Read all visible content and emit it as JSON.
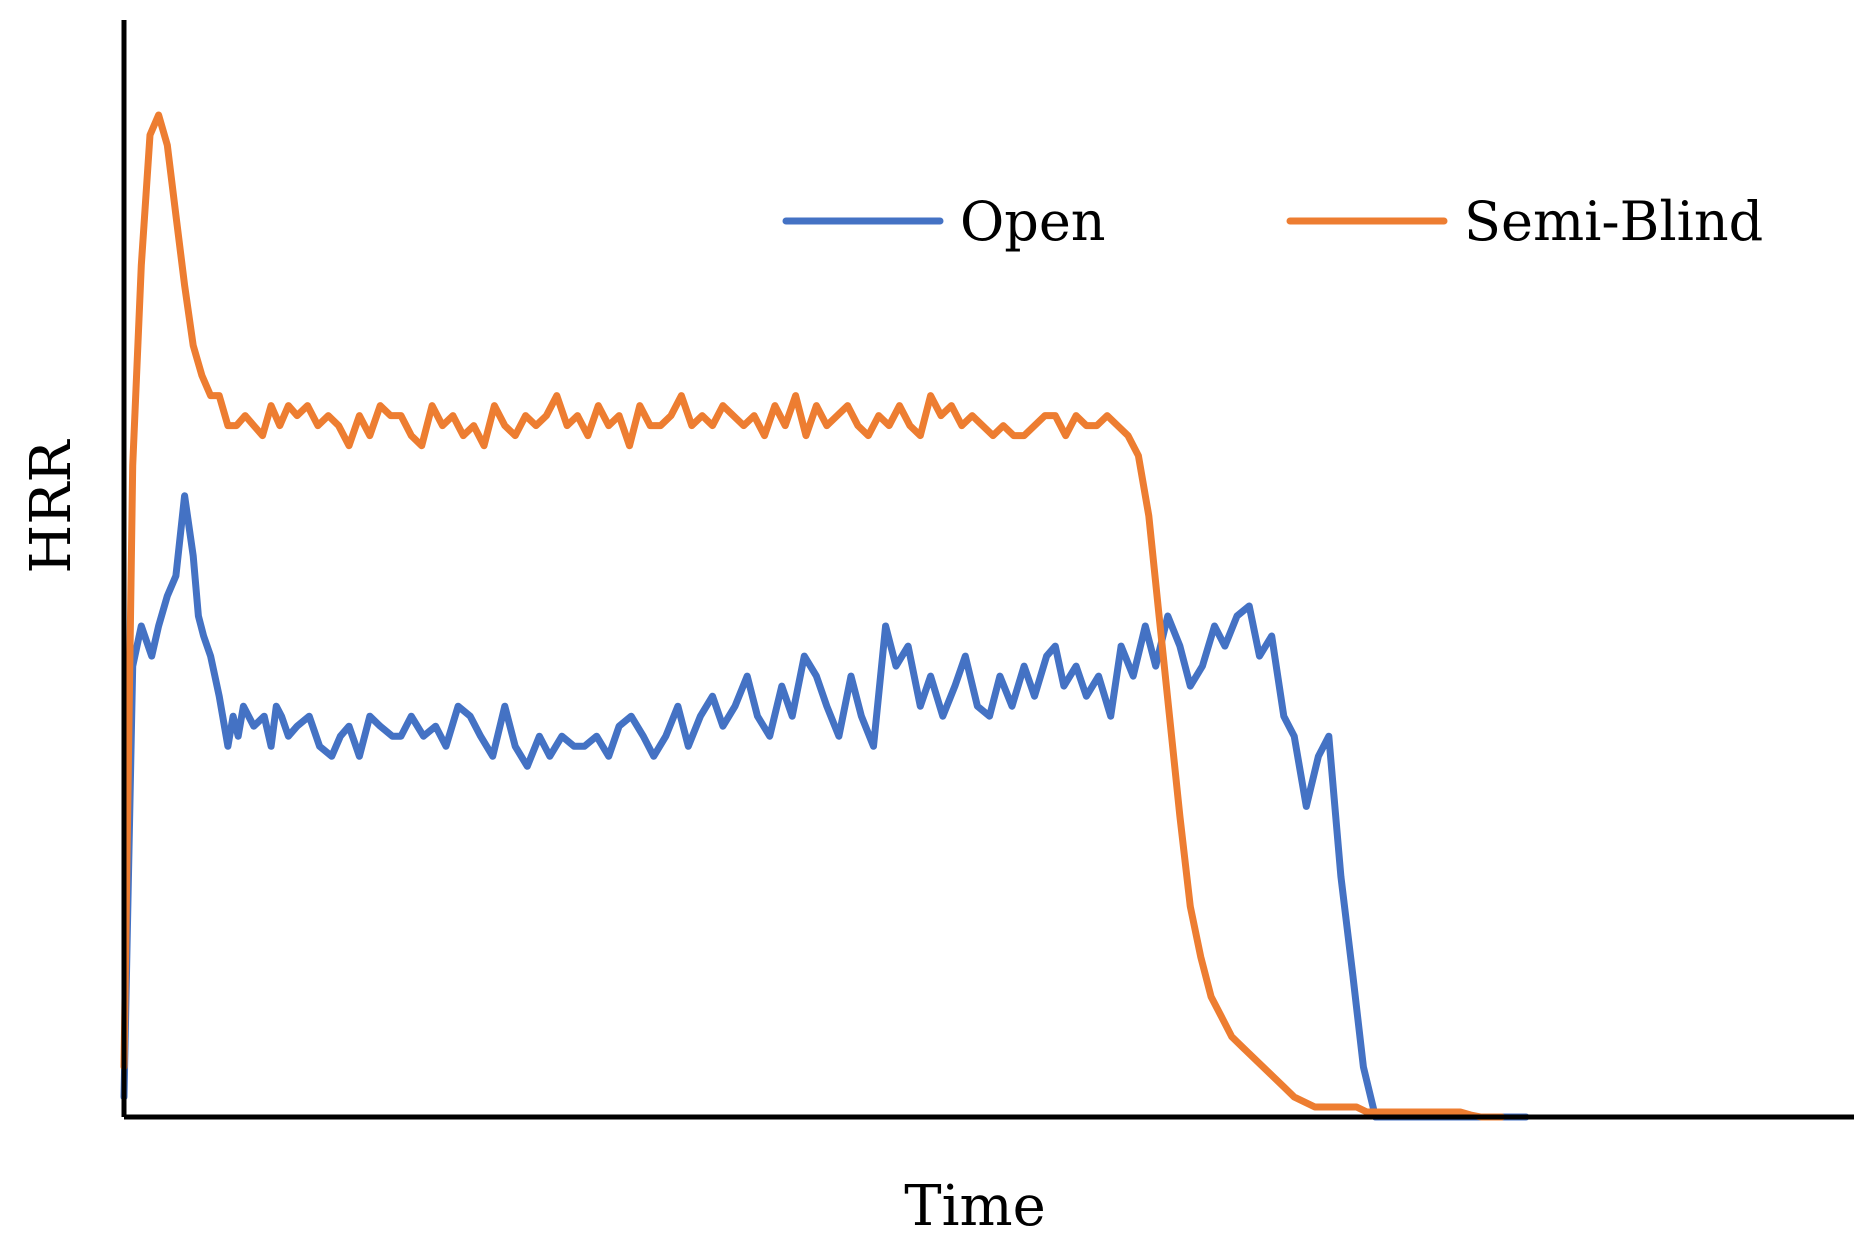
{
  "chart_data": {
    "type": "line",
    "title": "",
    "xlabel": "Time",
    "ylabel": "HRR",
    "xlim": [
      0,
      100
    ],
    "ylim": [
      0,
      100
    ],
    "x_ticks_shown": false,
    "y_ticks_shown": false,
    "grid": false,
    "legend": {
      "placement": "top-right",
      "orientation": "horizontal"
    },
    "series": [
      {
        "name": "Open",
        "color": "#4472C4",
        "x": [
          0.0,
          0.5,
          1.0,
          1.6,
          2.0,
          2.5,
          3.0,
          3.5,
          4.0,
          4.3,
          4.6,
          5.0,
          5.5,
          6.0,
          6.3,
          6.6,
          6.9,
          7.5,
          8.1,
          8.5,
          8.8,
          9.1,
          9.5,
          10.0,
          10.7,
          11.3,
          12.0,
          12.5,
          13.0,
          13.6,
          14.2,
          14.8,
          15.5,
          16.0,
          16.6,
          17.3,
          18.0,
          18.6,
          19.3,
          20.0,
          20.6,
          21.3,
          22.0,
          22.6,
          23.3,
          24.0,
          24.6,
          25.3,
          26.0,
          26.6,
          27.3,
          28.0,
          28.6,
          29.3,
          30.0,
          30.6,
          31.3,
          32.0,
          32.6,
          33.3,
          34.0,
          34.6,
          35.3,
          36.0,
          36.6,
          37.3,
          38.0,
          38.6,
          39.3,
          40.0,
          40.6,
          41.3,
          42.0,
          42.6,
          43.3,
          44.0,
          44.6,
          45.3,
          46.0,
          46.6,
          47.3,
          48.0,
          48.6,
          49.3,
          50.0,
          50.6,
          51.3,
          52.0,
          52.6,
          53.3,
          53.8,
          54.3,
          55.0,
          55.6,
          56.3,
          57.0,
          57.6,
          58.3,
          59.0,
          59.6,
          60.3,
          61.0,
          61.6,
          62.3,
          63.0,
          63.6,
          64.3,
          65.0,
          65.6,
          66.3,
          67.0,
          67.6,
          68.3,
          69.0,
          69.6,
          70.3,
          71.0,
          71.6,
          72.3,
          72.8,
          73.3,
          73.8,
          74.3,
          74.8,
          75.3,
          75.8,
          76.6,
          77.2,
          78.0,
          78.6,
          79.3,
          80.0,
          81.0
        ],
        "values": [
          2,
          45,
          49,
          46,
          49,
          52,
          54,
          62,
          56,
          50,
          48,
          46,
          42,
          37,
          40,
          38,
          41,
          39,
          40,
          37,
          41,
          40,
          38,
          39,
          40,
          37,
          36,
          38,
          39,
          36,
          40,
          39,
          38,
          38,
          40,
          38,
          39,
          37,
          41,
          40,
          38,
          36,
          41,
          37,
          35,
          38,
          36,
          38,
          37,
          37,
          38,
          36,
          39,
          40,
          38,
          36,
          38,
          41,
          37,
          40,
          42,
          39,
          41,
          44,
          40,
          38,
          43,
          40,
          46,
          44,
          41,
          38,
          44,
          40,
          37,
          49,
          45,
          47,
          41,
          44,
          40,
          43,
          46,
          41,
          40,
          44,
          41,
          45,
          42,
          46,
          47,
          43,
          45,
          42,
          44,
          40,
          47,
          44,
          49,
          45,
          50,
          47,
          43,
          45,
          49,
          47,
          50,
          51,
          46,
          48,
          40,
          38,
          31,
          36,
          38,
          24,
          14,
          5,
          0,
          0,
          0,
          0,
          0,
          0,
          0,
          0,
          0,
          0,
          0,
          0,
          0,
          0,
          0
        ]
      },
      {
        "name": "Semi-Blind",
        "color": "#ED7D31",
        "x": [
          0.0,
          0.5,
          1.0,
          1.5,
          2.0,
          2.5,
          3.0,
          3.5,
          4.0,
          4.5,
          5.0,
          5.5,
          6.0,
          6.5,
          7.0,
          7.5,
          8.0,
          8.5,
          9.0,
          9.5,
          10.0,
          10.6,
          11.2,
          11.8,
          12.4,
          13.0,
          13.6,
          14.2,
          14.8,
          15.4,
          16.0,
          16.6,
          17.2,
          17.8,
          18.4,
          19.0,
          19.6,
          20.2,
          20.8,
          21.4,
          22.0,
          22.6,
          23.2,
          23.8,
          24.4,
          25.0,
          25.6,
          26.2,
          26.8,
          27.4,
          28.0,
          28.6,
          29.2,
          29.8,
          30.4,
          31.0,
          31.6,
          32.2,
          32.8,
          33.4,
          34.0,
          34.6,
          35.2,
          35.8,
          36.4,
          37.0,
          37.6,
          38.2,
          38.8,
          39.4,
          40.0,
          40.6,
          41.2,
          41.8,
          42.4,
          43.0,
          43.6,
          44.2,
          44.8,
          45.4,
          46.0,
          46.6,
          47.2,
          47.8,
          48.4,
          49.0,
          49.6,
          50.2,
          50.8,
          51.4,
          52.0,
          52.6,
          53.2,
          53.8,
          54.4,
          55.0,
          55.6,
          56.2,
          56.8,
          57.4,
          58.0,
          58.6,
          59.2,
          59.8,
          60.4,
          61.0,
          61.6,
          62.2,
          62.8,
          63.4,
          64.0,
          64.6,
          65.2,
          65.8,
          66.4,
          67.0,
          67.6,
          68.2,
          68.8,
          69.4,
          70.0,
          70.6,
          71.2,
          71.8,
          72.4,
          73.0,
          73.6,
          74.2,
          74.8,
          75.4,
          76.0,
          76.6,
          77.2,
          77.8,
          78.4,
          79.0,
          79.6
        ],
        "values": [
          5,
          65,
          85,
          98,
          100,
          97,
          90,
          83,
          77,
          74,
          72,
          72,
          69,
          69,
          70,
          69,
          68,
          71,
          69,
          71,
          70,
          71,
          69,
          70,
          69,
          67,
          70,
          68,
          71,
          70,
          70,
          68,
          67,
          71,
          69,
          70,
          68,
          69,
          67,
          71,
          69,
          68,
          70,
          69,
          70,
          72,
          69,
          70,
          68,
          71,
          69,
          70,
          67,
          71,
          69,
          69,
          70,
          72,
          69,
          70,
          69,
          71,
          70,
          69,
          70,
          68,
          71,
          69,
          72,
          68,
          71,
          69,
          70,
          71,
          69,
          68,
          70,
          69,
          71,
          69,
          68,
          72,
          70,
          71,
          69,
          70,
          69,
          68,
          69,
          68,
          68,
          69,
          70,
          70,
          68,
          70,
          69,
          69,
          70,
          69,
          68,
          66,
          60,
          50,
          40,
          30,
          21,
          16,
          12,
          10,
          8,
          7,
          6,
          5,
          4,
          3,
          2,
          1.5,
          1,
          1,
          1,
          1,
          1,
          0.5,
          0.5,
          0.5,
          0.5,
          0.5,
          0.5,
          0.5,
          0.5,
          0.5,
          0.5,
          0.2,
          0,
          0,
          0
        ]
      }
    ]
  }
}
